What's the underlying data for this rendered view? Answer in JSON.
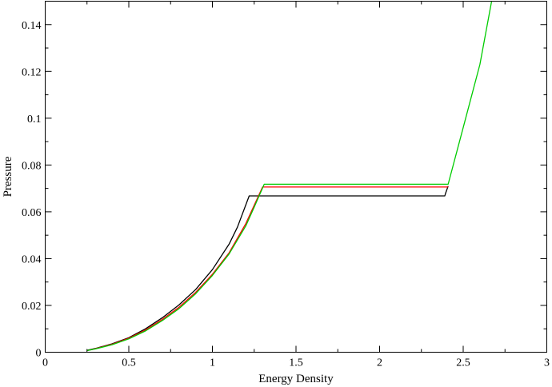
{
  "chart_data": {
    "type": "line",
    "title": "",
    "xlabel": "Energy Density",
    "ylabel": "Pressure",
    "xlim": [
      0,
      3
    ],
    "ylim": [
      0,
      0.15
    ],
    "grid": false,
    "x_ticks": [
      {
        "value": 0,
        "label": "0"
      },
      {
        "value": 0.5,
        "label": "0.5"
      },
      {
        "value": 1,
        "label": "1"
      },
      {
        "value": 1.5,
        "label": "1.5"
      },
      {
        "value": 2,
        "label": "2"
      },
      {
        "value": 2.5,
        "label": "2.5"
      },
      {
        "value": 3,
        "label": "3"
      }
    ],
    "y_ticks": [
      {
        "value": 0,
        "label": "0"
      },
      {
        "value": 0.02,
        "label": "0.02"
      },
      {
        "value": 0.04,
        "label": "0.04"
      },
      {
        "value": 0.06,
        "label": "0.06"
      },
      {
        "value": 0.08,
        "label": "0.08"
      },
      {
        "value": 0.1,
        "label": "0.1"
      },
      {
        "value": 0.12,
        "label": "0.12"
      },
      {
        "value": 0.14,
        "label": "0.14"
      }
    ],
    "series": [
      {
        "color": "#000000",
        "x": [
          0.25,
          0.3,
          0.4,
          0.5,
          0.6,
          0.7,
          0.8,
          0.9,
          1.0,
          1.1,
          1.15,
          1.22,
          2.39,
          2.395,
          2.41
        ],
        "y": [
          0.0008,
          0.0016,
          0.0036,
          0.0062,
          0.01,
          0.0147,
          0.0202,
          0.0268,
          0.0353,
          0.0462,
          0.0535,
          0.0668,
          0.0668,
          0.068,
          0.071
        ]
      },
      {
        "color": "#ff0000",
        "x": [
          0.25,
          0.3,
          0.4,
          0.5,
          0.6,
          0.7,
          0.8,
          0.9,
          1.0,
          1.1,
          1.2,
          1.3,
          2.41
        ],
        "y": [
          0.0007,
          0.0015,
          0.0034,
          0.006,
          0.0095,
          0.014,
          0.0192,
          0.0256,
          0.0333,
          0.0425,
          0.055,
          0.0706,
          0.0706
        ]
      },
      {
        "color": "#00cc00",
        "x": [
          0.25,
          0.3,
          0.4,
          0.5,
          0.6,
          0.7,
          0.8,
          0.9,
          1.0,
          1.1,
          1.2,
          1.25,
          1.31,
          2.41,
          2.5,
          2.6,
          2.67
        ],
        "y": [
          0.0007,
          0.0014,
          0.0032,
          0.0057,
          0.0091,
          0.0135,
          0.0186,
          0.025,
          0.0328,
          0.042,
          0.054,
          0.062,
          0.0718,
          0.0718,
          0.096,
          0.123,
          0.15
        ]
      }
    ]
  }
}
